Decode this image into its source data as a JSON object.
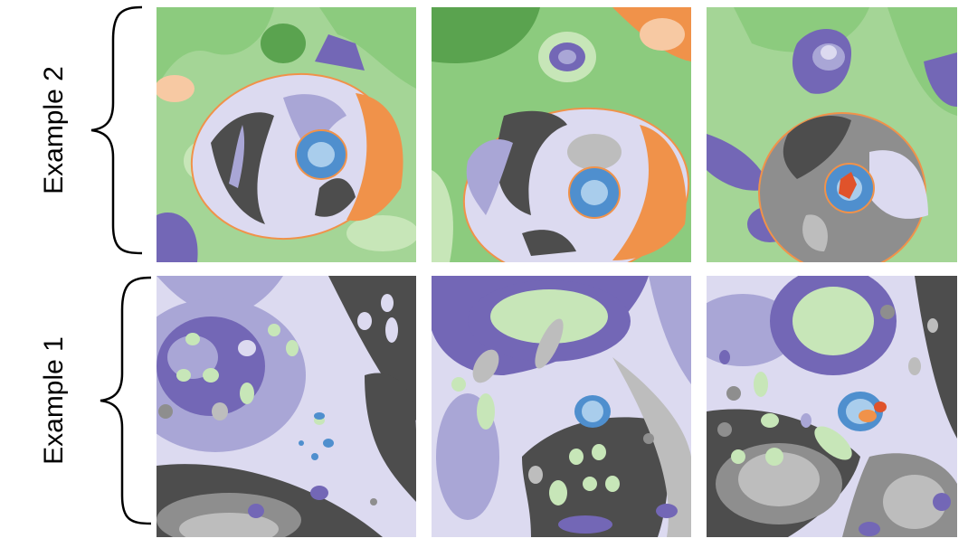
{
  "rows": [
    {
      "label": "Example 2",
      "panels": [
        "example-2-panel-1",
        "example-2-panel-2",
        "example-2-panel-3"
      ]
    },
    {
      "label": "Example 1",
      "panels": [
        "example-1-panel-1",
        "example-1-panel-2",
        "example-1-panel-3"
      ]
    }
  ],
  "colors": {
    "green_light": "#c7e6b8",
    "green_mid": "#8ccb7e",
    "green_dark": "#5aa34f",
    "purple_light": "#dcdaf0",
    "purple_mid": "#a9a6d6",
    "purple_dark": "#7367b6",
    "gray_light": "#bdbdbd",
    "gray_mid": "#8e8e8e",
    "gray_dark": "#4d4d4d",
    "orange": "#f0924a",
    "orange_light": "#f7c9a3",
    "blue": "#4f8fce",
    "blue_light": "#a9cdec",
    "red": "#e0532b"
  }
}
